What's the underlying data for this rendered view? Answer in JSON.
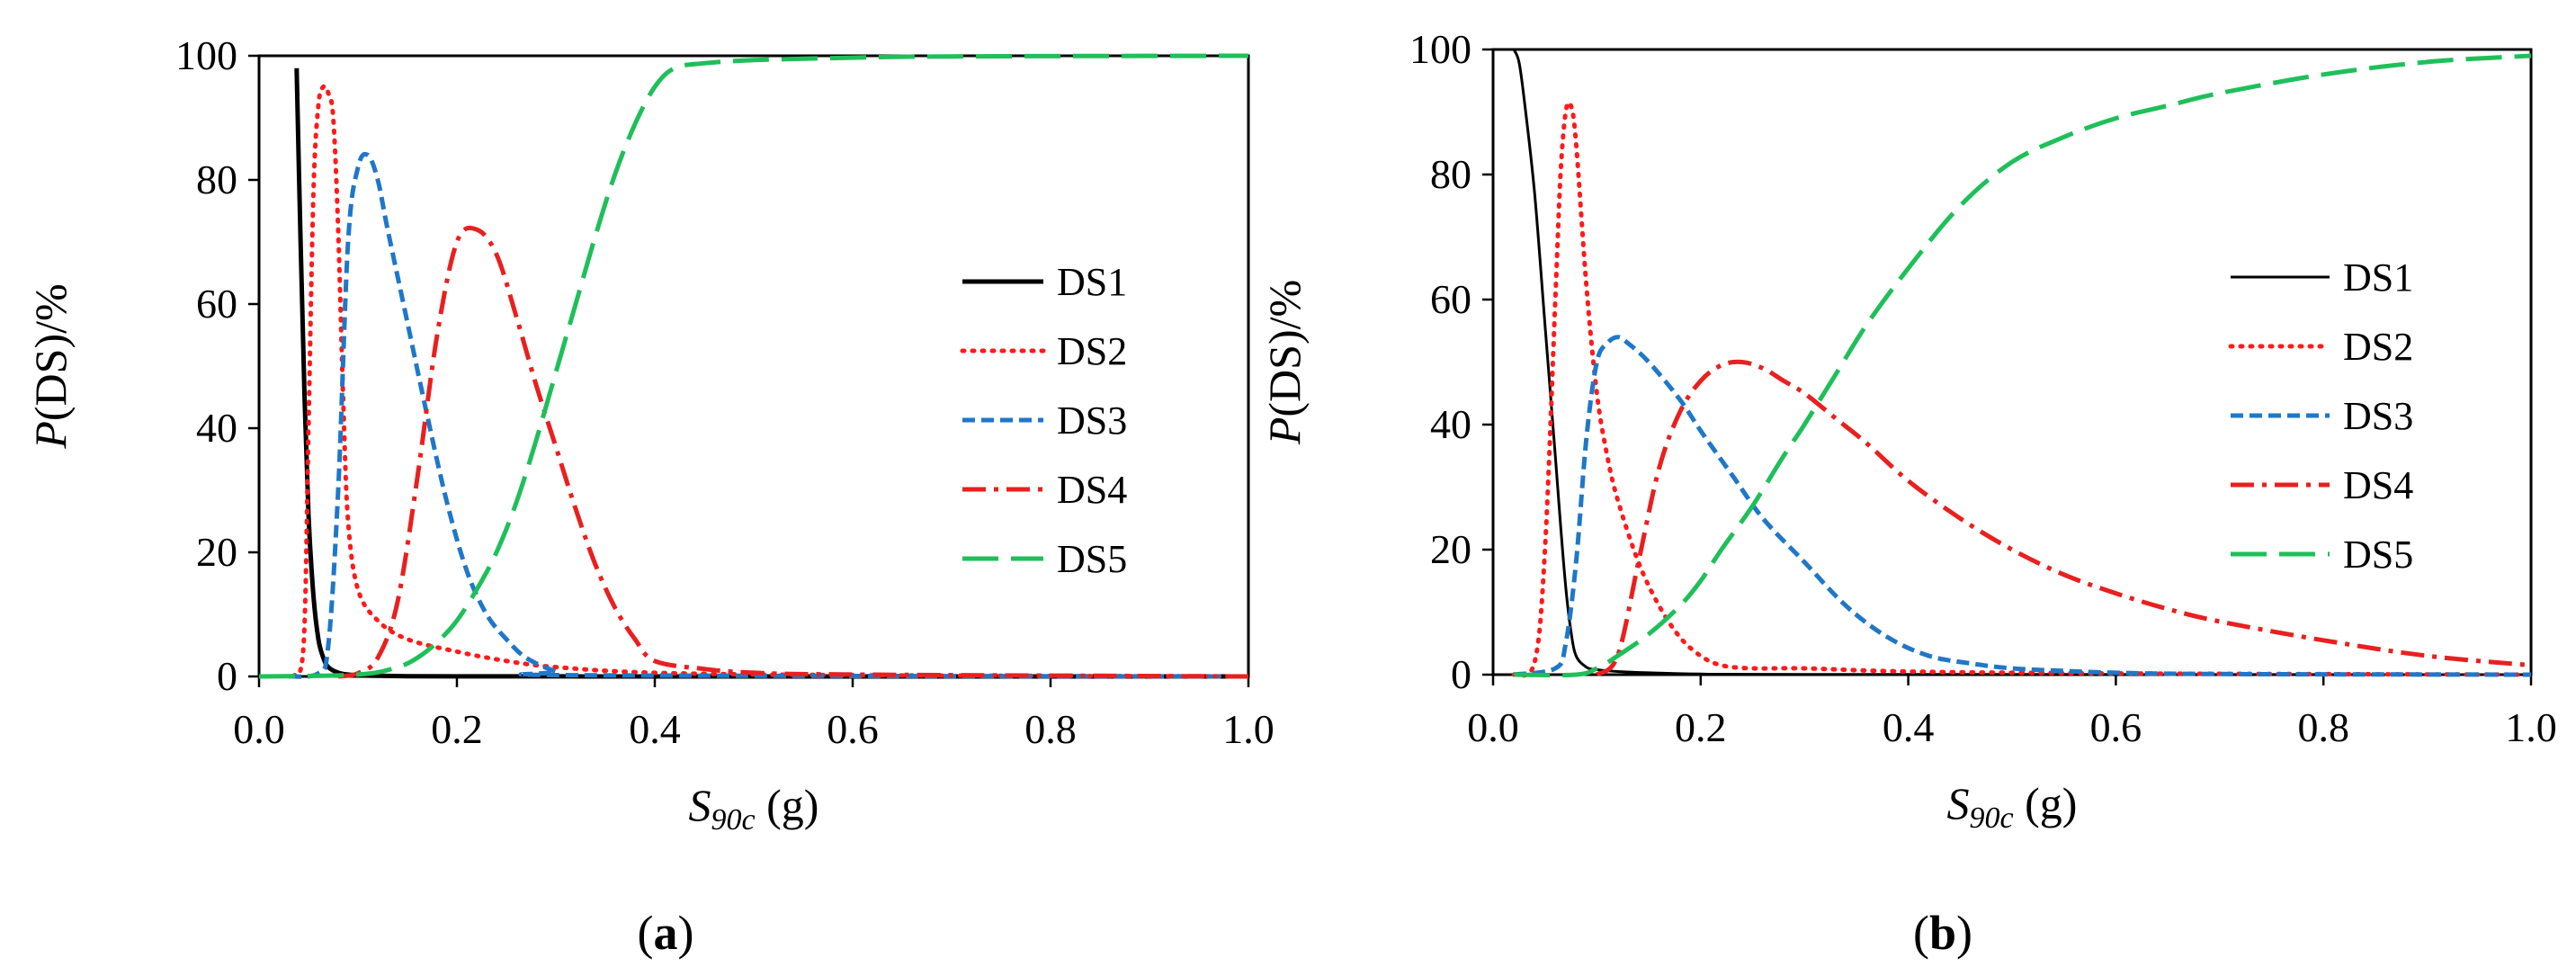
{
  "chart_data": [
    {
      "type": "line",
      "panel_label": "a",
      "xlabel_main": "S",
      "xlabel_sub": "90c",
      "xlabel_unit": " (g)",
      "ylabel_main": "P",
      "ylabel_rest": "(DS)/%",
      "xlim": [
        0,
        1
      ],
      "ylim": [
        0,
        100
      ],
      "xticks": [
        0,
        0.2,
        0.4,
        0.6,
        0.8,
        1.0
      ],
      "xtick_labels": [
        "0.0",
        "0.2",
        "0.4",
        "0.6",
        "0.8",
        "1.0"
      ],
      "yticks": [
        0,
        20,
        40,
        60,
        80,
        100
      ],
      "ytick_labels": [
        "0",
        "20",
        "40",
        "60",
        "80",
        "100"
      ],
      "legend_position": "right",
      "series": [
        {
          "name": "DS1",
          "color": "#000000",
          "dash": "solid",
          "weight": "heavy",
          "x": [
            0.038,
            0.042,
            0.046,
            0.05,
            0.055,
            0.06,
            0.065,
            0.07,
            0.08,
            0.09,
            0.1,
            0.12,
            0.15,
            0.2,
            0.3,
            0.5,
            1.0
          ],
          "y": [
            98,
            70,
            45,
            26,
            13,
            6,
            3,
            1.5,
            0.6,
            0.3,
            0.2,
            0.1,
            0.05,
            0.02,
            0.01,
            0,
            0
          ]
        },
        {
          "name": "DS2",
          "color": "#ff1a1a",
          "dash": "dotted",
          "weight": "heavy",
          "x": [
            0.035,
            0.045,
            0.05,
            0.055,
            0.06,
            0.065,
            0.07,
            0.075,
            0.08,
            0.085,
            0.09,
            0.1,
            0.12,
            0.15,
            0.2,
            0.25,
            0.3,
            0.4,
            0.6,
            1.0
          ],
          "y": [
            0,
            5,
            40,
            78,
            92,
            95,
            94,
            90,
            72,
            45,
            25,
            14,
            9,
            6,
            4,
            2.5,
            1.5,
            0.6,
            0.2,
            0
          ]
        },
        {
          "name": "DS3",
          "color": "#1f77c9",
          "dash": "short-dash",
          "weight": "heavy",
          "x": [
            0.03,
            0.06,
            0.07,
            0.08,
            0.09,
            0.1,
            0.11,
            0.12,
            0.13,
            0.15,
            0.17,
            0.19,
            0.21,
            0.23,
            0.25,
            0.27,
            0.3,
            0.32,
            1.0
          ],
          "y": [
            0,
            0.5,
            5,
            30,
            70,
            82,
            84,
            80,
            72,
            57,
            42,
            28,
            17,
            10,
            6,
            3,
            0.8,
            0.2,
            0
          ]
        },
        {
          "name": "DS4",
          "color": "#e8201f",
          "dash": "dash-dot",
          "weight": "heavy",
          "x": [
            0.08,
            0.1,
            0.12,
            0.14,
            0.16,
            0.18,
            0.2,
            0.22,
            0.24,
            0.26,
            0.28,
            0.3,
            0.32,
            0.34,
            0.36,
            0.38,
            0.4,
            0.45,
            0.5,
            0.6,
            1.0
          ],
          "y": [
            0,
            0.5,
            3,
            12,
            32,
            55,
            70,
            72,
            68,
            58,
            47,
            37,
            27,
            18,
            11,
            6,
            2.5,
            1.2,
            0.6,
            0.3,
            0
          ]
        },
        {
          "name": "DS5",
          "color": "#1fbf5a",
          "dash": "long-dash",
          "weight": "heavy",
          "x": [
            0.0,
            0.1,
            0.14,
            0.16,
            0.18,
            0.2,
            0.22,
            0.24,
            0.26,
            0.28,
            0.3,
            0.32,
            0.34,
            0.36,
            0.38,
            0.4,
            0.42,
            0.45,
            0.5,
            0.6,
            0.7,
            1.0
          ],
          "y": [
            0,
            0.3,
            1.5,
            3,
            5.5,
            9,
            14,
            20,
            28,
            38,
            49,
            60,
            71,
            81,
            89,
            95,
            98,
            98.8,
            99.3,
            99.7,
            99.9,
            100
          ]
        }
      ]
    },
    {
      "type": "line",
      "panel_label": "b",
      "xlabel_main": "S",
      "xlabel_sub": "90c",
      "xlabel_unit": " (g)",
      "ylabel_main": "P",
      "ylabel_rest": "(DS)/%",
      "xlim": [
        0,
        1
      ],
      "ylim": [
        0,
        100
      ],
      "xticks": [
        0,
        0.2,
        0.4,
        0.6,
        0.8,
        1.0
      ],
      "xtick_labels": [
        "0.0",
        "0.2",
        "0.4",
        "0.6",
        "0.8",
        "1.0"
      ],
      "yticks": [
        0,
        20,
        40,
        60,
        80,
        100
      ],
      "ytick_labels": [
        "0",
        "20",
        "40",
        "60",
        "80",
        "100"
      ],
      "legend_position": "right",
      "series": [
        {
          "name": "DS1",
          "color": "#000000",
          "dash": "solid",
          "weight": "light",
          "x": [
            0.02,
            0.025,
            0.03,
            0.04,
            0.05,
            0.06,
            0.065,
            0.07,
            0.075,
            0.08,
            0.09,
            0.1,
            0.12,
            0.15,
            0.2,
            0.3,
            1.0
          ],
          "y": [
            100,
            98,
            92,
            77,
            56,
            35,
            24,
            14,
            7,
            3,
            1.2,
            0.8,
            0.5,
            0.3,
            0.1,
            0.05,
            0
          ]
        },
        {
          "name": "DS2",
          "color": "#ff1a1a",
          "dash": "dotted",
          "weight": "heavy",
          "x": [
            0.02,
            0.04,
            0.05,
            0.06,
            0.065,
            0.07,
            0.075,
            0.08,
            0.09,
            0.1,
            0.11,
            0.12,
            0.14,
            0.16,
            0.18,
            0.2,
            0.22,
            0.25,
            0.3,
            0.4,
            0.6,
            1.0
          ],
          "y": [
            0,
            2,
            20,
            60,
            80,
            90,
            91,
            85,
            62,
            45,
            35,
            28,
            18,
            11,
            6,
            3,
            1.5,
            1,
            1,
            0.5,
            0.2,
            0
          ]
        },
        {
          "name": "DS3",
          "color": "#1f77c9",
          "dash": "short-dash",
          "weight": "heavy",
          "x": [
            0.02,
            0.06,
            0.07,
            0.08,
            0.09,
            0.1,
            0.11,
            0.12,
            0.13,
            0.15,
            0.18,
            0.2,
            0.23,
            0.26,
            0.3,
            0.34,
            0.38,
            0.42,
            0.46,
            0.5,
            0.55,
            0.6,
            0.7,
            1.0
          ],
          "y": [
            0,
            1,
            5,
            18,
            38,
            50,
            53,
            54,
            53,
            50,
            44,
            39,
            32,
            25,
            18,
            11,
            6,
            3,
            1.8,
            1,
            0.6,
            0.3,
            0.1,
            0
          ]
        },
        {
          "name": "DS4",
          "color": "#e8201f",
          "dash": "dash-dot",
          "weight": "heavy",
          "x": [
            0.1,
            0.12,
            0.14,
            0.16,
            0.18,
            0.2,
            0.22,
            0.24,
            0.26,
            0.28,
            0.3,
            0.33,
            0.36,
            0.4,
            0.45,
            0.5,
            0.55,
            0.6,
            0.65,
            0.7,
            0.8,
            0.9,
            1.0
          ],
          "y": [
            0,
            3,
            18,
            33,
            42,
            47,
            49.5,
            50,
            49,
            47,
            45,
            41,
            37,
            31,
            25,
            20,
            16,
            13,
            10.5,
            8.5,
            5.5,
            3,
            1.5
          ]
        },
        {
          "name": "DS5",
          "color": "#1fbf5a",
          "dash": "long-dash",
          "weight": "heavy",
          "x": [
            0.02,
            0.08,
            0.1,
            0.12,
            0.15,
            0.18,
            0.2,
            0.22,
            0.25,
            0.28,
            0.3,
            0.33,
            0.36,
            0.4,
            0.45,
            0.5,
            0.55,
            0.6,
            0.65,
            0.7,
            0.8,
            0.9,
            1.0
          ],
          "y": [
            0,
            0,
            1,
            3,
            6.5,
            11,
            15,
            20,
            27,
            35,
            40,
            48,
            56,
            65,
            75,
            82,
            86,
            89,
            91,
            93,
            96,
            98,
            99
          ]
        }
      ]
    }
  ]
}
